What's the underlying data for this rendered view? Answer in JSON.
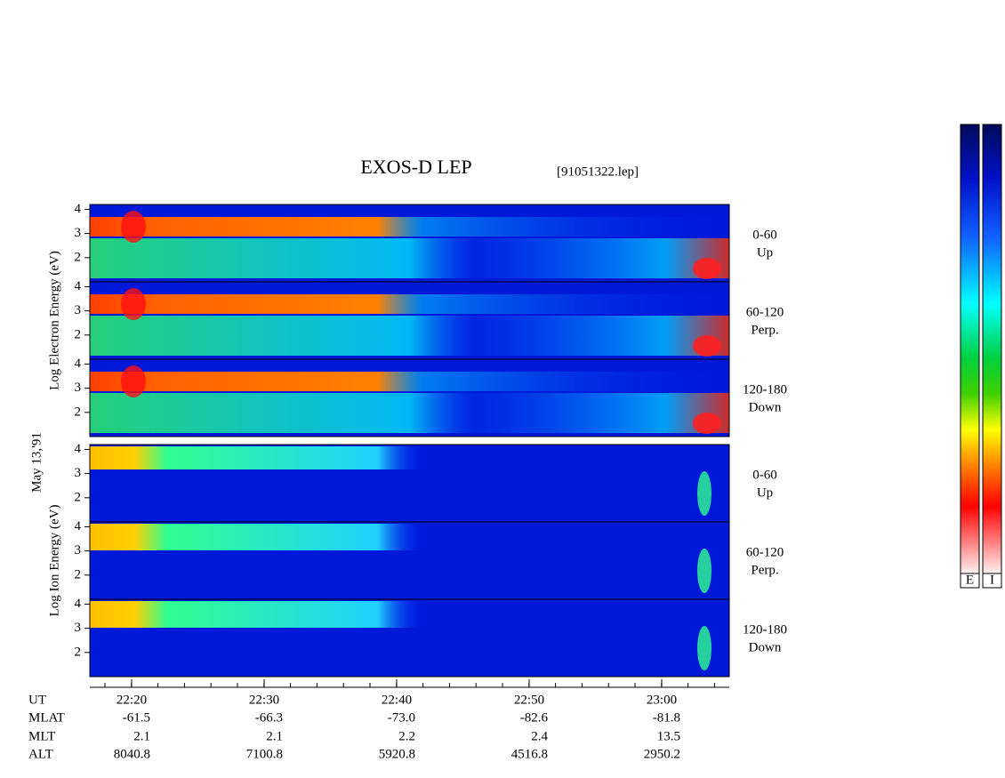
{
  "chart_data": {
    "type": "spectrogram",
    "title": "EXOS-D LEP",
    "file": "[91051322.lep]",
    "date": "May 13,'91",
    "ylim": [
      1,
      4.2
    ],
    "yticks": [
      2,
      3,
      4
    ],
    "groups": [
      {
        "axis_label": "Log Electron Energy (eV)",
        "panels": [
          {
            "range": "0-60",
            "direction": "Up"
          },
          {
            "range": "60-120",
            "direction": "Perp."
          },
          {
            "range": "120-180",
            "direction": "Down"
          }
        ]
      },
      {
        "axis_label": "Log Ion Energy (eV)",
        "panels": [
          {
            "range": "0-60",
            "direction": "Up"
          },
          {
            "range": "60-120",
            "direction": "Perp."
          },
          {
            "range": "120-180",
            "direction": "Down"
          }
        ]
      }
    ],
    "table": {
      "rows": [
        {
          "label": "UT",
          "values": [
            "22:20",
            "22:30",
            "22:40",
            "22:50",
            "23:00"
          ]
        },
        {
          "label": "MLAT",
          "values": [
            "-61.5",
            "-66.3",
            "-73.0",
            "-82.6",
            "-81.8"
          ]
        },
        {
          "label": "MLT",
          "values": [
            "2.1",
            "2.1",
            "2.2",
            "2.4",
            "13.5"
          ]
        },
        {
          "label": "ALT",
          "values": [
            "8040.8",
            "7100.8",
            "5920.8",
            "4516.8",
            "2950.2"
          ]
        }
      ]
    },
    "colorbars": [
      "E",
      "I"
    ]
  }
}
